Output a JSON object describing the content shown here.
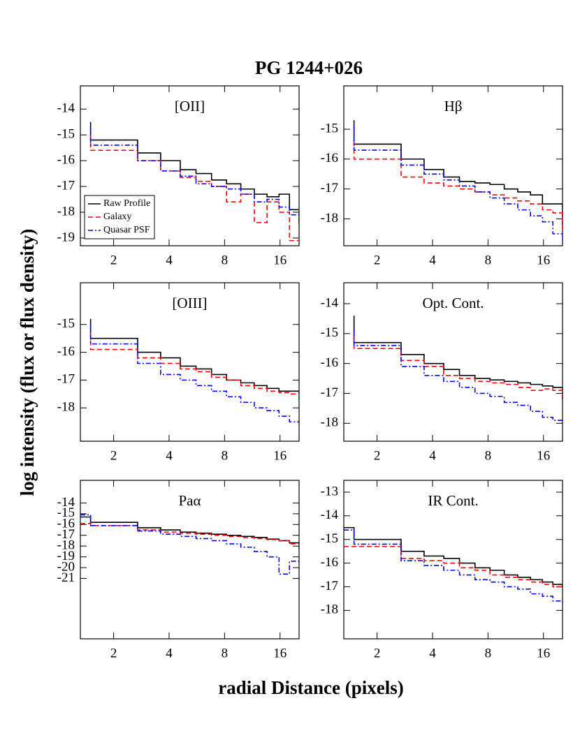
{
  "title": "PG 1244+026",
  "x_label": "radial Distance (pixels)",
  "y_label": "log intensity (flux or flux density)",
  "chart_data": [
    {
      "type": "step",
      "title": "[OII]",
      "xscale": "log",
      "xlim": [
        1.32,
        20.3
      ],
      "xticks": [
        2,
        4,
        8,
        16
      ],
      "ylim": [
        -19.3,
        -13.1
      ],
      "yticks": [
        -14,
        -15,
        -16,
        -17,
        -18,
        -19
      ],
      "legend": "lower left",
      "x": [
        1.5,
        1.5,
        2.7,
        3.6,
        4.6,
        5.6,
        6.8,
        8.2,
        9.8,
        11.6,
        13.6,
        15.8,
        18,
        20.3
      ],
      "series": [
        {
          "name": "Raw Profile",
          "color": "#000000",
          "values": [
            -14.5,
            -15.2,
            -15.7,
            -16.0,
            -16.35,
            -16.5,
            -16.75,
            -16.9,
            -17.1,
            -17.3,
            -17.4,
            -17.3,
            -17.9,
            -18.5
          ]
        },
        {
          "name": "Galaxy",
          "color": "#ff0000",
          "values": [
            -15.0,
            -15.6,
            -16.0,
            -16.4,
            -16.65,
            -16.8,
            -17.0,
            -17.6,
            -17.3,
            -18.4,
            -17.6,
            -18.0,
            -19.1,
            -17.8
          ]
        },
        {
          "name": "Quasar PSF",
          "color": "#0000ff",
          "values": [
            -14.7,
            -15.4,
            -16.0,
            -16.4,
            -16.6,
            -16.9,
            -17.0,
            -17.1,
            -17.3,
            -17.6,
            -17.5,
            -17.8,
            -18.1,
            -18.4
          ]
        }
      ]
    },
    {
      "type": "step",
      "title": "Hβ",
      "xscale": "log",
      "xlim": [
        1.32,
        20.3
      ],
      "xticks": [
        2,
        4,
        8,
        16
      ],
      "ylim": [
        -18.9,
        -13.55
      ],
      "yticks": [
        -15,
        -16,
        -17,
        -18
      ],
      "x": [
        1.5,
        1.5,
        2.7,
        3.6,
        4.6,
        5.6,
        6.8,
        8.2,
        9.8,
        11.6,
        13.6,
        15.8,
        18,
        20.3
      ],
      "series": [
        {
          "color": "#000000",
          "values": [
            -14.7,
            -15.5,
            -16.0,
            -16.35,
            -16.6,
            -16.75,
            -16.8,
            -16.85,
            -17.0,
            -17.1,
            -17.2,
            -17.5,
            -17.5,
            -18.2
          ]
        },
        {
          "color": "#ff0000",
          "values": [
            -15.4,
            -16.0,
            -16.6,
            -16.8,
            -16.9,
            -17.0,
            -17.1,
            -17.2,
            -17.3,
            -17.4,
            -17.5,
            -17.7,
            -17.8,
            -18.5
          ]
        },
        {
          "color": "#0000ff",
          "values": [
            -14.9,
            -15.7,
            -16.2,
            -16.5,
            -16.7,
            -16.9,
            -17.1,
            -17.3,
            -17.5,
            -17.7,
            -17.9,
            -18.1,
            -18.5,
            -18.8
          ]
        }
      ]
    },
    {
      "type": "step",
      "title": "[OIII]",
      "xscale": "log",
      "xlim": [
        1.32,
        20.3
      ],
      "xticks": [
        2,
        4,
        8,
        16
      ],
      "ylim": [
        -19.2,
        -13.5
      ],
      "yticks": [
        -15,
        -16,
        -17,
        -18
      ],
      "x": [
        1.5,
        1.5,
        2.7,
        3.6,
        4.6,
        5.6,
        6.8,
        8.2,
        9.8,
        11.6,
        13.6,
        15.8,
        18,
        20.3
      ],
      "series": [
        {
          "color": "#000000",
          "values": [
            -14.8,
            -15.5,
            -16.0,
            -16.2,
            -16.5,
            -16.6,
            -16.8,
            -17.0,
            -17.1,
            -17.2,
            -17.3,
            -17.4,
            -17.4,
            -17.7
          ]
        },
        {
          "color": "#ff0000",
          "values": [
            -15.3,
            -15.9,
            -16.2,
            -16.4,
            -16.6,
            -16.7,
            -16.9,
            -17.0,
            -17.2,
            -17.3,
            -17.4,
            -17.45,
            -17.5,
            -17.7
          ]
        },
        {
          "color": "#0000ff",
          "values": [
            -15.0,
            -15.7,
            -16.4,
            -16.8,
            -17.0,
            -17.2,
            -17.4,
            -17.6,
            -17.8,
            -18.0,
            -18.1,
            -18.3,
            -18.5,
            -18.6
          ]
        }
      ]
    },
    {
      "type": "step",
      "title": "Opt. Cont.",
      "xscale": "log",
      "xlim": [
        1.32,
        20.3
      ],
      "xticks": [
        2,
        4,
        8,
        16
      ],
      "ylim": [
        -18.6,
        -13.3
      ],
      "yticks": [
        -14,
        -15,
        -16,
        -17,
        -18
      ],
      "x": [
        1.5,
        1.5,
        2.7,
        3.6,
        4.6,
        5.6,
        6.8,
        8.2,
        9.8,
        11.6,
        13.6,
        15.8,
        18,
        20.3
      ],
      "series": [
        {
          "color": "#000000",
          "values": [
            -14.4,
            -15.3,
            -15.7,
            -16.0,
            -16.2,
            -16.4,
            -16.5,
            -16.55,
            -16.6,
            -16.65,
            -16.7,
            -16.75,
            -16.8,
            -17.2
          ]
        },
        {
          "color": "#ff0000",
          "values": [
            -15.1,
            -15.5,
            -15.9,
            -16.1,
            -16.4,
            -16.5,
            -16.6,
            -16.65,
            -16.7,
            -16.8,
            -16.9,
            -16.85,
            -16.9,
            -17.1
          ]
        },
        {
          "color": "#0000ff",
          "values": [
            -14.9,
            -15.4,
            -16.1,
            -16.4,
            -16.6,
            -16.8,
            -17.0,
            -17.1,
            -17.3,
            -17.4,
            -17.6,
            -17.8,
            -17.9,
            -18.0
          ]
        }
      ]
    },
    {
      "type": "step",
      "title": "Paα",
      "xscale": "log",
      "xlim": [
        1.32,
        20.3
      ],
      "xticks": [
        2,
        4,
        8,
        16
      ],
      "ylim": [
        -26.6,
        -11.9
      ],
      "yticks": [
        -14,
        -15,
        -16,
        -17,
        -18,
        -19,
        -20,
        -21
      ],
      "x": [
        1.32,
        1.5,
        2.7,
        3.6,
        4.6,
        5.6,
        6.8,
        8.2,
        9.8,
        11.6,
        13.6,
        15.8,
        18,
        20.3
      ],
      "series": [
        {
          "color": "#000000",
          "values": [
            -15.3,
            -15.8,
            -16.3,
            -16.5,
            -16.7,
            -16.8,
            -16.9,
            -17.0,
            -17.1,
            -17.2,
            -17.35,
            -17.5,
            -17.7,
            -18.2
          ]
        },
        {
          "color": "#ff0000",
          "values": [
            -15.9,
            -16.1,
            -16.5,
            -16.7,
            -16.8,
            -16.9,
            -17.0,
            -17.1,
            -17.2,
            -17.3,
            -17.4,
            -17.5,
            -17.8,
            -18.0
          ]
        },
        {
          "color": "#0000ff",
          "values": [
            -15.1,
            -16.1,
            -16.6,
            -16.9,
            -17.1,
            -17.3,
            -17.5,
            -17.8,
            -18.1,
            -18.5,
            -19.0,
            -20.6,
            -19.4,
            -19.4
          ]
        }
      ]
    },
    {
      "type": "step",
      "title": "IR Cont.",
      "xscale": "log",
      "xlim": [
        1.32,
        20.3
      ],
      "xticks": [
        2,
        4,
        8,
        16
      ],
      "ylim": [
        -19.2,
        -12.5
      ],
      "yticks": [
        -13,
        -14,
        -15,
        -16,
        -17,
        -18
      ],
      "x": [
        1.32,
        1.5,
        2.7,
        3.6,
        4.6,
        5.6,
        6.8,
        8.2,
        9.8,
        11.6,
        13.6,
        15.8,
        18,
        20.3
      ],
      "series": [
        {
          "color": "#000000",
          "values": [
            -14.5,
            -15.0,
            -15.5,
            -15.7,
            -15.8,
            -16.0,
            -16.2,
            -16.3,
            -16.5,
            -16.6,
            -16.7,
            -16.8,
            -16.9,
            -17.0
          ]
        },
        {
          "color": "#ff0000",
          "values": [
            -15.3,
            -15.3,
            -15.8,
            -15.9,
            -16.0,
            -16.2,
            -16.3,
            -16.5,
            -16.6,
            -16.7,
            -16.8,
            -16.9,
            -17.0,
            -17.1
          ]
        },
        {
          "color": "#0000ff",
          "values": [
            -14.6,
            -15.2,
            -15.9,
            -16.1,
            -16.3,
            -16.5,
            -16.7,
            -16.8,
            -17.0,
            -17.1,
            -17.3,
            -17.4,
            -17.6,
            -17.7
          ]
        }
      ]
    }
  ]
}
